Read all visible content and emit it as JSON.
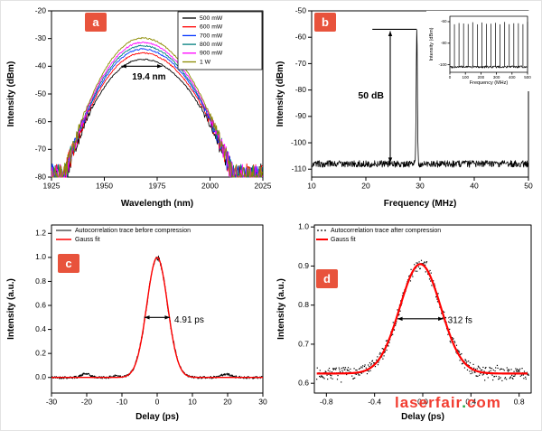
{
  "watermark": {
    "prefix": "laserfair",
    "dot": ".",
    "suffix": "com"
  },
  "chart_data": [
    {
      "id": "a",
      "panel_label": "a",
      "type": "line",
      "xlabel": "Wavelength (nm)",
      "ylabel": "Intensity (dBm)",
      "xlim": [
        1925,
        2025
      ],
      "ylim": [
        -80,
        -20
      ],
      "xticks": [
        1925,
        1950,
        1975,
        2000,
        2025
      ],
      "yticks": [
        -80,
        -70,
        -60,
        -50,
        -40,
        -30,
        -20
      ],
      "legend": [
        {
          "label": "500 mW",
          "color": "#000000"
        },
        {
          "label": "600 mW",
          "color": "#ff0000"
        },
        {
          "label": "700 mW",
          "color": "#0033ff"
        },
        {
          "label": "800 mW",
          "color": "#007d7d"
        },
        {
          "label": "900 mW",
          "color": "#ff00ff"
        },
        {
          "label": "1 W",
          "color": "#8b8b00"
        }
      ],
      "annotation": {
        "text": "19.4 nm",
        "y_dbm": -40,
        "x1_nm": 1958,
        "x2_nm": 1977.4
      },
      "spectrum": {
        "center_nm": 1968,
        "left_edge_nm": 1931,
        "right_edge_nm": 2011,
        "noise_floor_dbm": -80,
        "bandwidth_nm": 19.4,
        "peak_dbm_by_series": [
          -37.5,
          -35.2,
          -33.8,
          -32.6,
          -31.4,
          -29.8
        ]
      }
    },
    {
      "id": "b",
      "panel_label": "b",
      "type": "line",
      "xlabel": "Frequency (MHz)",
      "ylabel": "Intensity (dBm)",
      "xlim": [
        10,
        50
      ],
      "ylim": [
        -113,
        -50
      ],
      "xticks": [
        10,
        20,
        30,
        40,
        50
      ],
      "yticks": [
        -110,
        -100,
        -90,
        -80,
        -70,
        -60,
        -50
      ],
      "signal": {
        "noise_floor_dbm": -108,
        "peak_frequency_mhz": 29.4,
        "peak_dbm": -57,
        "snr_db": 50
      },
      "annotation": {
        "text": "50 dB",
        "arrow_x_mhz": 24.5,
        "top_dbm": -57,
        "bottom_dbm": -107.5,
        "ref_line_x1_mhz": 21.2
      },
      "inset": {
        "xlabel": "Frequency (MHz)",
        "ylabel": "Intensity (dBm)",
        "xlim": [
          0,
          500
        ],
        "ylim": [
          -107,
          -55
        ],
        "xticks": [
          0,
          100,
          200,
          300,
          400,
          500
        ],
        "yticks": [
          -60,
          -80,
          -100
        ],
        "comb_spacing_mhz": 29.4,
        "comb_top_dbm": -60,
        "noise_floor_dbm": -102
      }
    },
    {
      "id": "c",
      "panel_label": "c",
      "type": "line",
      "xlabel": "Delay (ps)",
      "ylabel": "Intensity (a.u.)",
      "xlim": [
        -30,
        30
      ],
      "ylim": [
        -0.13,
        1.27
      ],
      "xticks": [
        -30,
        -20,
        -10,
        0,
        10,
        20,
        30
      ],
      "yticks": [
        0,
        0.2,
        0.4,
        0.6,
        0.8,
        1,
        1.2
      ],
      "legend": [
        {
          "label": "Autocorrelation trace before compression",
          "color": "#000000",
          "style": "line"
        },
        {
          "label": "Gauss fit",
          "color": "#ff0000",
          "style": "line"
        }
      ],
      "annotation": {
        "text": "4.91 ps",
        "y": 0.5,
        "x1_ps": -3.6,
        "x2_ps": 3.6
      },
      "pulse": {
        "amplitude": 1,
        "center_ps": 0,
        "ac_fwhm_ps": 6.94,
        "baseline": 0,
        "fit_color": "#ff0000"
      }
    },
    {
      "id": "d",
      "panel_label": "d",
      "type": "scatter",
      "xlabel": "Delay (ps)",
      "ylabel": "Intensity (a.u.)",
      "xlim": [
        -0.9,
        0.9
      ],
      "ylim": [
        0.575,
        1.005
      ],
      "xticks": [
        -0.8,
        -0.4,
        0,
        0.4,
        0.8
      ],
      "yticks": [
        0.6,
        0.7,
        0.8,
        0.9,
        1
      ],
      "legend": [
        {
          "label": "Autocorrelation trace after compression",
          "color": "#000000",
          "style": "dots"
        },
        {
          "label": "Gauss fit",
          "color": "#ff0000",
          "style": "line"
        }
      ],
      "annotation": {
        "text": "312 fs",
        "y": 0.765,
        "x1_ps": -0.21,
        "x2_ps": 0.17
      },
      "pulse": {
        "amplitude": 0.905,
        "center_ps": -0.02,
        "ac_fwhm_ps": 0.4,
        "baseline": 0.625,
        "fit_color": "#ff0000"
      }
    }
  ]
}
